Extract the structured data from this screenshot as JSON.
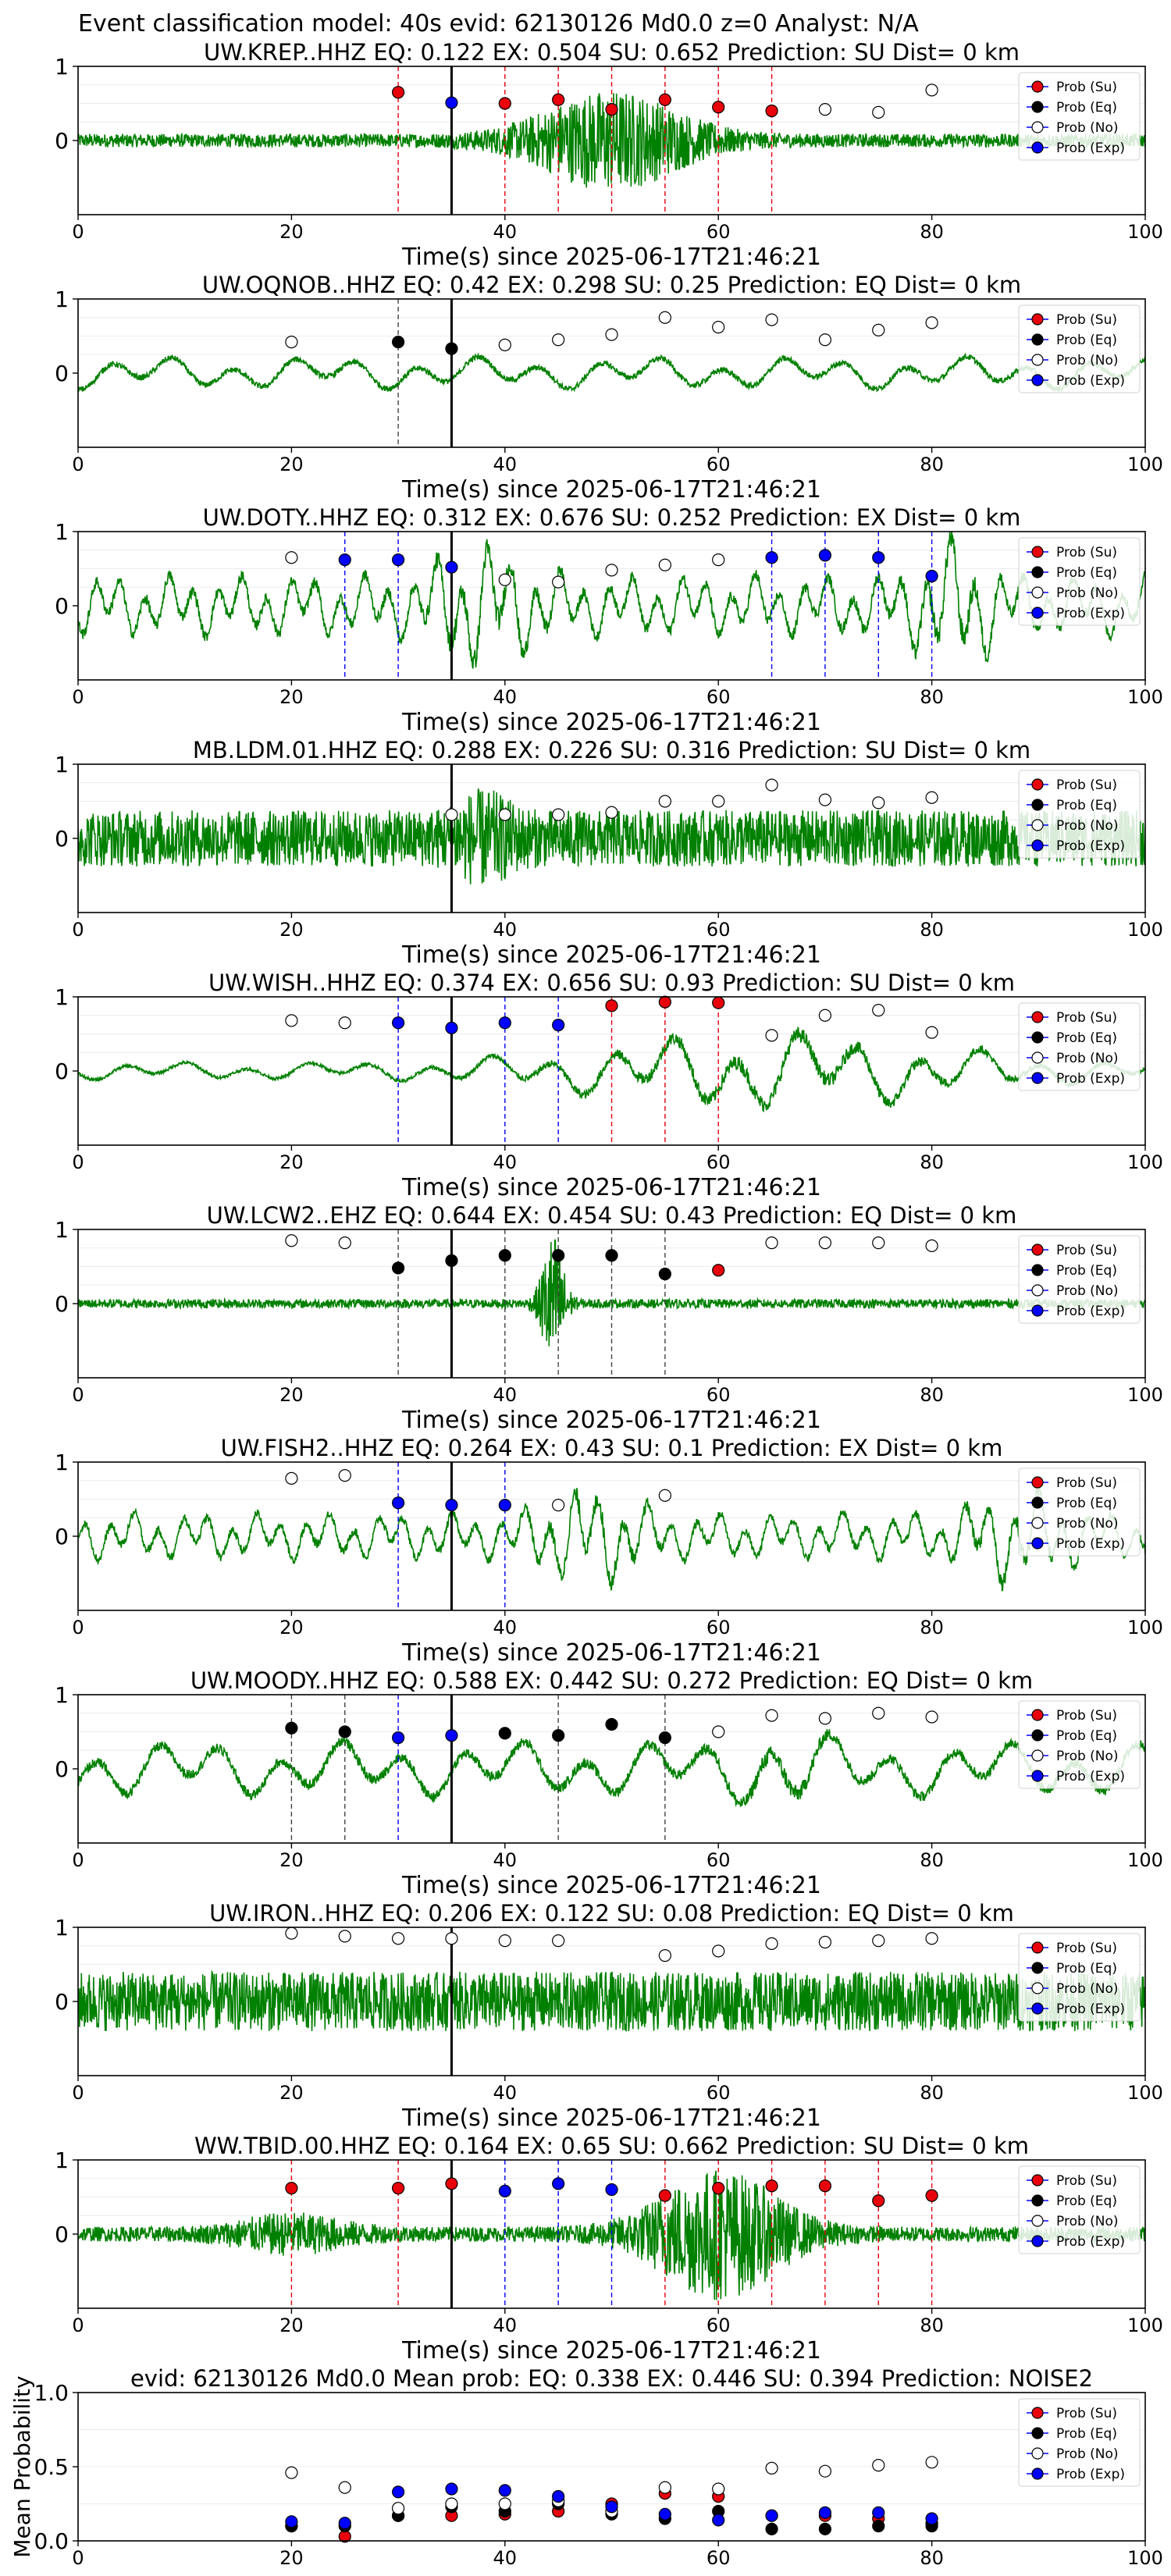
{
  "figure": {
    "suptitle": "Event classification model: 40s evid: 62130126 Md0.0 z=0 Analyst: N/A",
    "xlabel": "Time(s) since 2025-06-17T21:46:21",
    "legend": [
      "Prob (Su)",
      "Prob (Eq)",
      "Prob (No)",
      "Prob (Exp)"
    ],
    "xticks": [
      "0",
      "20",
      "40",
      "60",
      "80",
      "100"
    ],
    "yticks_wave": [
      "1",
      "0"
    ],
    "colors": {
      "su": "#e8000b",
      "eq": "#000000",
      "no": "#ffffff",
      "exp": "#0000ff",
      "wave": "#008000"
    }
  },
  "chart_data": [
    {
      "type": "line",
      "title": "UW.KREP..HHZ   EQ: 0.122  EX: 0.504  SU: 0.652   Prediction: SU    Dist= 0 km",
      "xlim": [
        0,
        100
      ],
      "ylim": [
        -1,
        1
      ],
      "wave": {
        "amp": 0.09,
        "freq": "high",
        "bursts": [
          {
            "t": 50,
            "a": 0.6,
            "w": 8
          }
        ]
      },
      "markers": {
        "x": [
          30,
          35,
          40,
          45,
          50,
          55,
          60,
          65,
          70,
          75,
          80
        ],
        "y": [
          0.65,
          0.51,
          0.5,
          0.55,
          0.42,
          0.55,
          0.45,
          0.4,
          0.42,
          0.38,
          0.68
        ],
        "cls": [
          "su",
          "exp",
          "su",
          "su",
          "su",
          "su",
          "su",
          "su",
          "no",
          "no",
          "no"
        ]
      },
      "vlines": [
        {
          "x": 30,
          "cls": "su"
        },
        {
          "x": 40,
          "cls": "su"
        },
        {
          "x": 45,
          "cls": "su"
        },
        {
          "x": 50,
          "cls": "su"
        },
        {
          "x": 55,
          "cls": "su"
        },
        {
          "x": 60,
          "cls": "su"
        },
        {
          "x": 65,
          "cls": "su"
        }
      ]
    },
    {
      "type": "line",
      "title": "UW.OQNOB..HHZ   EQ: 0.42  EX: 0.298  SU: 0.25   Prediction: EQ    Dist= 0 km",
      "xlim": [
        0,
        100
      ],
      "ylim": [
        -1,
        1
      ],
      "wave": {
        "amp": 0.22,
        "freq": "low",
        "bursts": []
      },
      "markers": {
        "x": [
          20,
          30,
          35,
          40,
          45,
          50,
          55,
          60,
          65,
          70,
          75,
          80
        ],
        "y": [
          0.42,
          0.42,
          0.33,
          0.38,
          0.45,
          0.52,
          0.75,
          0.62,
          0.72,
          0.45,
          0.58,
          0.68
        ],
        "cls": [
          "no",
          "eq",
          "eq",
          "no",
          "no",
          "no",
          "no",
          "no",
          "no",
          "no",
          "no",
          "no"
        ]
      },
      "vlines": [
        {
          "x": 30,
          "cls": "eq"
        }
      ]
    },
    {
      "type": "line",
      "title": "UW.DOTY..HHZ   EQ: 0.312  EX: 0.676  SU: 0.252   Prediction: EX    Dist= 0 km",
      "xlim": [
        0,
        100
      ],
      "ylim": [
        -1,
        1
      ],
      "wave": {
        "amp": 0.42,
        "freq": "mid",
        "bursts": [
          {
            "t": 38,
            "a": 0.5,
            "w": 5
          },
          {
            "t": 82,
            "a": 0.5,
            "w": 4
          }
        ]
      },
      "markers": {
        "x": [
          20,
          25,
          30,
          35,
          40,
          45,
          50,
          55,
          60,
          65,
          70,
          75,
          80
        ],
        "y": [
          0.65,
          0.62,
          0.62,
          0.52,
          0.35,
          0.32,
          0.48,
          0.55,
          0.62,
          0.65,
          0.68,
          0.65,
          0.4
        ],
        "cls": [
          "no",
          "exp",
          "exp",
          "exp",
          "no",
          "no",
          "no",
          "no",
          "no",
          "exp",
          "exp",
          "exp",
          "exp"
        ]
      },
      "vlines": [
        {
          "x": 25,
          "cls": "exp"
        },
        {
          "x": 30,
          "cls": "exp"
        },
        {
          "x": 65,
          "cls": "exp"
        },
        {
          "x": 70,
          "cls": "exp"
        },
        {
          "x": 75,
          "cls": "exp"
        },
        {
          "x": 80,
          "cls": "exp"
        }
      ]
    },
    {
      "type": "line",
      "title": "MB.LDM.01.HHZ   EQ: 0.288  EX: 0.226  SU: 0.316   Prediction: SU    Dist= 0 km",
      "xlim": [
        0,
        100
      ],
      "ylim": [
        -1,
        1
      ],
      "wave": {
        "amp": 0.38,
        "freq": "high",
        "bursts": [
          {
            "t": 38,
            "a": 0.3,
            "w": 3
          }
        ]
      },
      "markers": {
        "x": [
          35,
          40,
          45,
          50,
          55,
          60,
          65,
          70,
          75,
          80
        ],
        "y": [
          0.32,
          0.32,
          0.32,
          0.35,
          0.5,
          0.5,
          0.72,
          0.52,
          0.48,
          0.55
        ],
        "cls": [
          "no",
          "no",
          "no",
          "no",
          "no",
          "no",
          "no",
          "no",
          "no",
          "no"
        ]
      },
      "vlines": []
    },
    {
      "type": "line",
      "title": "UW.WISH..HHZ   EQ: 0.374  EX: 0.656  SU: 0.93   Prediction: SU    Dist= 0 km",
      "xlim": [
        0,
        100
      ],
      "ylim": [
        -1,
        1
      ],
      "wave": {
        "amp": 0.12,
        "freq": "low",
        "bursts": [
          {
            "t": 65,
            "a": 0.45,
            "w": 20
          }
        ]
      },
      "markers": {
        "x": [
          20,
          25,
          30,
          35,
          40,
          45,
          50,
          55,
          60,
          65,
          70,
          75,
          80
        ],
        "y": [
          0.68,
          0.65,
          0.65,
          0.58,
          0.65,
          0.62,
          0.88,
          0.93,
          0.92,
          0.48,
          0.75,
          0.82,
          0.52
        ],
        "cls": [
          "no",
          "no",
          "exp",
          "exp",
          "exp",
          "exp",
          "su",
          "su",
          "su",
          "no",
          "no",
          "no",
          "no"
        ]
      },
      "vlines": [
        {
          "x": 30,
          "cls": "exp"
        },
        {
          "x": 40,
          "cls": "exp"
        },
        {
          "x": 45,
          "cls": "exp"
        },
        {
          "x": 50,
          "cls": "su"
        },
        {
          "x": 55,
          "cls": "su"
        },
        {
          "x": 60,
          "cls": "su"
        }
      ]
    },
    {
      "type": "line",
      "title": "UW.LCW2..EHZ   EQ: 0.644  EX: 0.454  SU: 0.43   Prediction: EQ    Dist= 0 km",
      "xlim": [
        0,
        100
      ],
      "ylim": [
        -1,
        1
      ],
      "wave": {
        "amp": 0.06,
        "freq": "high",
        "bursts": [
          {
            "t": 44.5,
            "a": 0.9,
            "w": 1.2
          }
        ]
      },
      "markers": {
        "x": [
          20,
          25,
          30,
          35,
          40,
          45,
          50,
          55,
          60,
          65,
          70,
          75,
          80
        ],
        "y": [
          0.85,
          0.82,
          0.48,
          0.58,
          0.65,
          0.65,
          0.65,
          0.4,
          0.45,
          0.82,
          0.82,
          0.82,
          0.78
        ],
        "cls": [
          "no",
          "no",
          "eq",
          "eq",
          "eq",
          "eq",
          "eq",
          "eq",
          "su",
          "no",
          "no",
          "no",
          "no"
        ]
      },
      "vlines": [
        {
          "x": 30,
          "cls": "eq"
        },
        {
          "x": 40,
          "cls": "eq"
        },
        {
          "x": 45,
          "cls": "eq"
        },
        {
          "x": 50,
          "cls": "eq"
        },
        {
          "x": 55,
          "cls": "eq"
        }
      ]
    },
    {
      "type": "line",
      "title": "UW.FISH2..HHZ   EQ: 0.264  EX: 0.43  SU: 0.1   Prediction: EX    Dist= 0 km",
      "xlim": [
        0,
        100
      ],
      "ylim": [
        -1,
        1
      ],
      "wave": {
        "amp": 0.32,
        "freq": "mid",
        "bursts": [
          {
            "t": 48,
            "a": 0.4,
            "w": 5
          },
          {
            "t": 88,
            "a": 0.35,
            "w": 5
          }
        ]
      },
      "markers": {
        "x": [
          20,
          25,
          30,
          35,
          40,
          45,
          55
        ],
        "y": [
          0.78,
          0.82,
          0.45,
          0.42,
          0.42,
          0.42,
          0.55
        ],
        "cls": [
          "no",
          "no",
          "exp",
          "exp",
          "exp",
          "no",
          "no"
        ]
      },
      "vlines": [
        {
          "x": 30,
          "cls": "exp"
        },
        {
          "x": 40,
          "cls": "exp"
        }
      ]
    },
    {
      "type": "line",
      "title": "UW.MOODY..HHZ   EQ: 0.588  EX: 0.442  SU: 0.272   Prediction: EQ    Dist= 0 km",
      "xlim": [
        0,
        100
      ],
      "ylim": [
        -1,
        1
      ],
      "wave": {
        "amp": 0.38,
        "freq": "low",
        "bursts": [
          {
            "t": 66,
            "a": 0.3,
            "w": 4
          }
        ]
      },
      "markers": {
        "x": [
          20,
          25,
          30,
          35,
          40,
          45,
          50,
          55,
          60,
          65,
          70,
          75,
          80
        ],
        "y": [
          0.55,
          0.5,
          0.42,
          0.45,
          0.48,
          0.45,
          0.6,
          0.42,
          0.5,
          0.72,
          0.68,
          0.75,
          0.7
        ],
        "cls": [
          "eq",
          "eq",
          "exp",
          "exp",
          "eq",
          "eq",
          "eq",
          "eq",
          "no",
          "no",
          "no",
          "no",
          "no"
        ]
      },
      "vlines": [
        {
          "x": 20,
          "cls": "eq"
        },
        {
          "x": 25,
          "cls": "eq"
        },
        {
          "x": 30,
          "cls": "exp"
        },
        {
          "x": 45,
          "cls": "eq"
        },
        {
          "x": 55,
          "cls": "eq"
        }
      ]
    },
    {
      "type": "line",
      "title": "UW.IRON..HHZ   EQ: 0.206  EX: 0.122  SU: 0.08   Prediction: EQ    Dist= 0 km",
      "xlim": [
        0,
        100
      ],
      "ylim": [
        -1,
        1
      ],
      "wave": {
        "amp": 0.4,
        "freq": "high",
        "bursts": []
      },
      "markers": {
        "x": [
          20,
          25,
          30,
          35,
          40,
          45,
          55,
          60,
          65,
          70,
          75,
          80
        ],
        "y": [
          0.92,
          0.88,
          0.85,
          0.85,
          0.82,
          0.82,
          0.62,
          0.68,
          0.78,
          0.8,
          0.82,
          0.85
        ],
        "cls": [
          "no",
          "no",
          "no",
          "no",
          "no",
          "no",
          "no",
          "no",
          "no",
          "no",
          "no",
          "no"
        ]
      },
      "vlines": []
    },
    {
      "type": "line",
      "title": "WW.TBID.00.HHZ   EQ: 0.164  EX: 0.65  SU: 0.662   Prediction: SU    Dist= 0 km",
      "xlim": [
        0,
        100
      ],
      "ylim": [
        -1,
        1
      ],
      "wave": {
        "amp": 0.1,
        "freq": "high",
        "bursts": [
          {
            "t": 60,
            "a": 0.8,
            "w": 7
          },
          {
            "t": 20,
            "a": 0.2,
            "w": 6
          }
        ]
      },
      "markers": {
        "x": [
          20,
          30,
          35,
          40,
          45,
          50,
          55,
          60,
          65,
          70,
          75,
          80
        ],
        "y": [
          0.62,
          0.62,
          0.68,
          0.58,
          0.68,
          0.6,
          0.52,
          0.62,
          0.65,
          0.65,
          0.45,
          0.52
        ],
        "cls": [
          "su",
          "su",
          "su",
          "exp",
          "exp",
          "exp",
          "su",
          "su",
          "su",
          "su",
          "su",
          "su"
        ]
      },
      "vlines": [
        {
          "x": 20,
          "cls": "su"
        },
        {
          "x": 30,
          "cls": "su"
        },
        {
          "x": 40,
          "cls": "exp"
        },
        {
          "x": 45,
          "cls": "exp"
        },
        {
          "x": 50,
          "cls": "exp"
        },
        {
          "x": 55,
          "cls": "su"
        },
        {
          "x": 60,
          "cls": "su"
        },
        {
          "x": 65,
          "cls": "su"
        },
        {
          "x": 70,
          "cls": "su"
        },
        {
          "x": 75,
          "cls": "su"
        },
        {
          "x": 80,
          "cls": "su"
        }
      ]
    },
    {
      "type": "scatter",
      "title": "evid: 62130126  Md0.0   Mean prob:   EQ: 0.338  EX: 0.446  SU: 0.394   Prediction: NOISE2",
      "ylabel": "Mean Probability",
      "xlim": [
        0,
        100
      ],
      "ylim": [
        0,
        1
      ],
      "yticks": [
        "1.0",
        "0.5",
        "0.0"
      ],
      "series": [
        {
          "name": "Prob (Su)",
          "cls": "su",
          "x": [
            20,
            25,
            30,
            35,
            40,
            45,
            50,
            55,
            60,
            65,
            70,
            75,
            80
          ],
          "y": [
            0.1,
            0.03,
            0.17,
            0.17,
            0.18,
            0.2,
            0.25,
            0.32,
            0.3,
            0.17,
            0.17,
            0.15,
            0.12
          ]
        },
        {
          "name": "Prob (Eq)",
          "cls": "eq",
          "x": [
            20,
            25,
            30,
            35,
            40,
            45,
            50,
            55,
            60,
            65,
            70,
            75,
            80
          ],
          "y": [
            0.1,
            0.1,
            0.17,
            0.23,
            0.2,
            0.25,
            0.18,
            0.15,
            0.2,
            0.08,
            0.08,
            0.1,
            0.1
          ]
        },
        {
          "name": "Prob (No)",
          "cls": "no",
          "x": [
            20,
            25,
            30,
            35,
            40,
            45,
            50,
            55,
            60,
            65,
            70,
            75,
            80
          ],
          "y": [
            0.46,
            0.36,
            0.22,
            0.25,
            0.25,
            0.27,
            0.2,
            0.36,
            0.35,
            0.49,
            0.47,
            0.51,
            0.53
          ]
        },
        {
          "name": "Prob (Exp)",
          "cls": "exp",
          "x": [
            20,
            25,
            30,
            35,
            40,
            45,
            50,
            55,
            60,
            65,
            70,
            75,
            80
          ],
          "y": [
            0.13,
            0.12,
            0.33,
            0.35,
            0.34,
            0.3,
            0.23,
            0.18,
            0.14,
            0.17,
            0.19,
            0.19,
            0.15
          ]
        }
      ]
    }
  ]
}
